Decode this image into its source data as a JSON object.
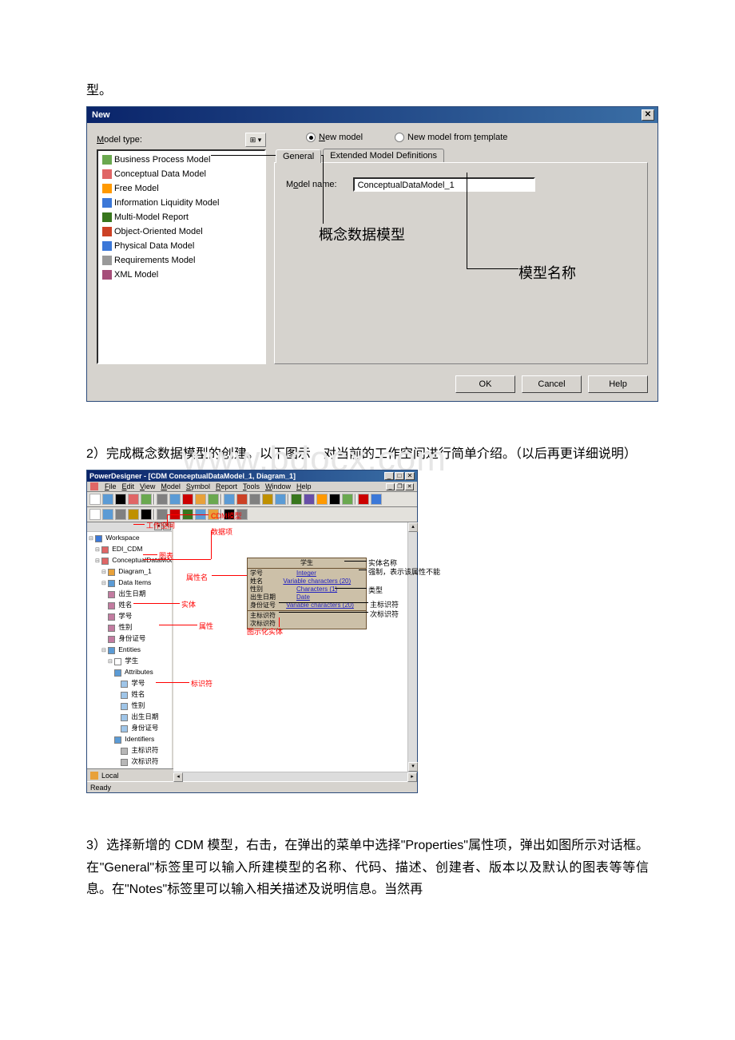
{
  "para0": "型。",
  "dialog": {
    "title": "New",
    "model_type_label": "Model type:",
    "grid_icon": "⊞ ▾",
    "models": [
      {
        "icon": "#6aa84f",
        "label": "Business Process Model"
      },
      {
        "icon": "#e06666",
        "label": "Conceptual Data Model"
      },
      {
        "icon": "#ff9900",
        "label": "Free Model"
      },
      {
        "icon": "#3c78d8",
        "label": "Information Liquidity Model"
      },
      {
        "icon": "#38761d",
        "label": "Multi-Model Report"
      },
      {
        "icon": "#cc4125",
        "label": "Object-Oriented Model"
      },
      {
        "icon": "#3c78d8",
        "label": "Physical Data Model"
      },
      {
        "icon": "#999999",
        "label": "Requirements Model"
      },
      {
        "icon": "#a64d79",
        "label": "XML Model"
      }
    ],
    "radio_new": "New model",
    "radio_tmpl": "New model from template",
    "tab_general": "General",
    "tab_ext": "Extended Model Definitions",
    "model_name_label": "Model name:",
    "model_name_value": "ConceptualDataModel_1",
    "callout_model": "概念数据模型",
    "callout_name": "模型名称",
    "btn_ok": "OK",
    "btn_cancel": "Cancel",
    "btn_help": "Help"
  },
  "para1": "2）完成概念数据模型的创建。以下图示，对当前的工作空间进行简单介绍。（以后再更详细说明）",
  "watermark": "www.bdocx.com",
  "pd": {
    "title": "PowerDesigner - [CDM ConceptualDataModel_1, Diagram_1]",
    "menus": [
      "File",
      "Edit",
      "View",
      "Model",
      "Symbol",
      "Report",
      "Tools",
      "Window",
      "Help"
    ],
    "tree_tab": "Local",
    "status": "Ready",
    "tree": [
      {
        "indent": 0,
        "icon": "#3c78d8",
        "text": "Workspace"
      },
      {
        "indent": 1,
        "icon": "#e06666",
        "text": "EDI_CDM"
      },
      {
        "indent": 1,
        "icon": "#e06666",
        "text": "ConceptualDataModel_1 *"
      },
      {
        "indent": 2,
        "icon": "#e8a13a",
        "text": "Diagram_1"
      },
      {
        "indent": 2,
        "icon": "#5b9bd5",
        "text": "Data Items"
      },
      {
        "indent": 3,
        "icon": "#c27ba0",
        "text": "出生日期"
      },
      {
        "indent": 3,
        "icon": "#c27ba0",
        "text": "姓名"
      },
      {
        "indent": 3,
        "icon": "#c27ba0",
        "text": "学号"
      },
      {
        "indent": 3,
        "icon": "#c27ba0",
        "text": "性别"
      },
      {
        "indent": 3,
        "icon": "#c27ba0",
        "text": "身份证号"
      },
      {
        "indent": 2,
        "icon": "#5b9bd5",
        "text": "Entities"
      },
      {
        "indent": 3,
        "icon": "#ffffff",
        "text": "学生"
      },
      {
        "indent": 4,
        "icon": "#5b9bd5",
        "text": "Attributes"
      },
      {
        "indent": 5,
        "icon": "#9fc5e8",
        "text": "学号"
      },
      {
        "indent": 5,
        "icon": "#9fc5e8",
        "text": "姓名"
      },
      {
        "indent": 5,
        "icon": "#9fc5e8",
        "text": "性别"
      },
      {
        "indent": 5,
        "icon": "#9fc5e8",
        "text": "出生日期"
      },
      {
        "indent": 5,
        "icon": "#9fc5e8",
        "text": "身份证号"
      },
      {
        "indent": 4,
        "icon": "#5b9bd5",
        "text": "Identifiers"
      },
      {
        "indent": 5,
        "icon": "#b7b7b7",
        "text": "主标识符"
      },
      {
        "indent": 5,
        "icon": "#b7b7b7",
        "text": "次标识符"
      }
    ],
    "entity": {
      "name": "学生",
      "attrs": [
        {
          "name": "学号",
          "pk": "<pi>",
          "type": "Integer",
          "m": "<M>"
        },
        {
          "name": "姓名",
          "pk": "",
          "type": "Variable characters (20)",
          "m": "<M>"
        },
        {
          "name": "性别",
          "pk": "",
          "type": "Characters (1)",
          "m": ""
        },
        {
          "name": "出生日期",
          "pk": "",
          "type": "Date",
          "m": "<M>"
        },
        {
          "name": "身份证号",
          "pk": "<ai>",
          "type": "Variable characters (20)",
          "m": "<M>"
        }
      ],
      "ids": [
        {
          "name": "主标识符",
          "tag": "<pi>"
        },
        {
          "name": "次标识符",
          "tag": "<ai>"
        }
      ]
    },
    "ann": {
      "cdm_model": "CDM模型",
      "workspace": "工作空间",
      "data_item": "数据项",
      "diagram": "图表",
      "attr_name": "属性名",
      "entity_name": "实体名称",
      "mandatory": "强制，表示该属性不能",
      "type": "类型",
      "entity": "实体",
      "primary_id": "主标识符",
      "secondary_id": "次标识符",
      "attribute": "属性",
      "identifier": "标识符",
      "graphic_entity": "图示化实体"
    },
    "toolbar_colors": [
      "#ffffff",
      "#5b9bd5",
      "#000000",
      "#e06666",
      "#6aa84f",
      "#808080",
      "#5b9bd5",
      "#cc0000",
      "#e8a13a",
      "#6aa84f",
      "#5b9bd5",
      "#cc4125",
      "#808080",
      "#bf9000",
      "#5b9bd5",
      "#38761d",
      "#674ea7",
      "#ff9900",
      "#000000",
      "#6aa84f",
      "#cc0000",
      "#3c78d8"
    ],
    "toolbar2_colors": [
      "#ffffff",
      "#5b9bd5",
      "#808080",
      "#bf9000",
      "#000000",
      "#808080",
      "#cc0000",
      "#38761d",
      "#5b9bd5",
      "#e8a13a",
      "#000000",
      "#808080"
    ]
  },
  "para2": "3）选择新增的 CDM 模型，右击，在弹出的菜单中选择\"Properties\"属性项，弹出如图所示对话框。在\"General\"标签里可以输入所建模型的名称、代码、描述、创建者、版本以及默认的图表等等信息。在\"Notes\"标签里可以输入相关描述及说明信息。当然再"
}
